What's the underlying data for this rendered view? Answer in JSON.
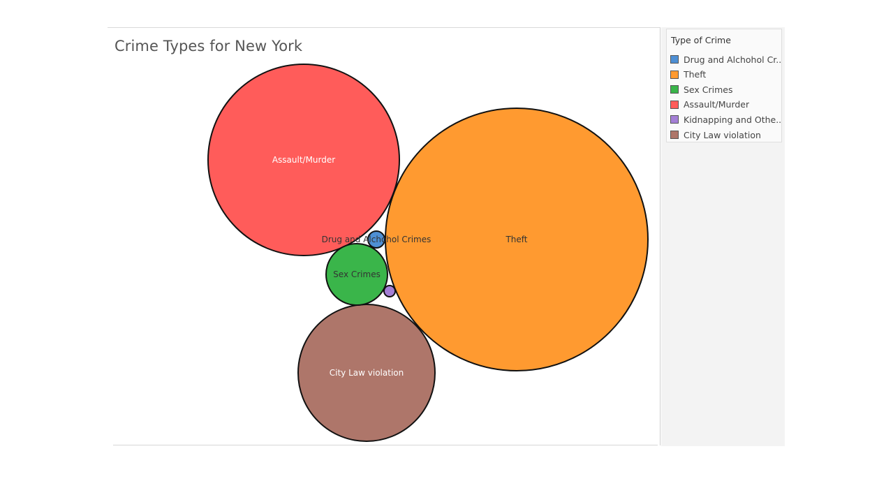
{
  "chart_data": {
    "type": "bubble",
    "title": "Crime Types for New York",
    "legend_title": "Type of Crime",
    "legend_placement": "right",
    "categories": [
      "Drug and Alchohol Crimes",
      "Theft",
      "Sex Crimes",
      "Assault/Murder",
      "Kidnapping and Other",
      "City Law violation"
    ],
    "legend_labels": [
      "Drug and Alchohol Cr..",
      "Theft",
      "Sex Crimes",
      "Assault/Murder",
      "Kidnapping and Othe..",
      "City Law violation"
    ],
    "colors": [
      "#4e8fd4",
      "#ff9a30",
      "#3ab54a",
      "#ff5c5a",
      "#a47fd6",
      "#ae766a"
    ],
    "relative_size": [
      0.01,
      1.0,
      0.06,
      0.53,
      0.003,
      0.27
    ],
    "labels_shown": [
      true,
      true,
      true,
      true,
      false,
      true
    ],
    "label_colors": [
      "#333333",
      "#333333",
      "#333333",
      "#ffffff",
      "#333333",
      "#ffffff"
    ]
  }
}
